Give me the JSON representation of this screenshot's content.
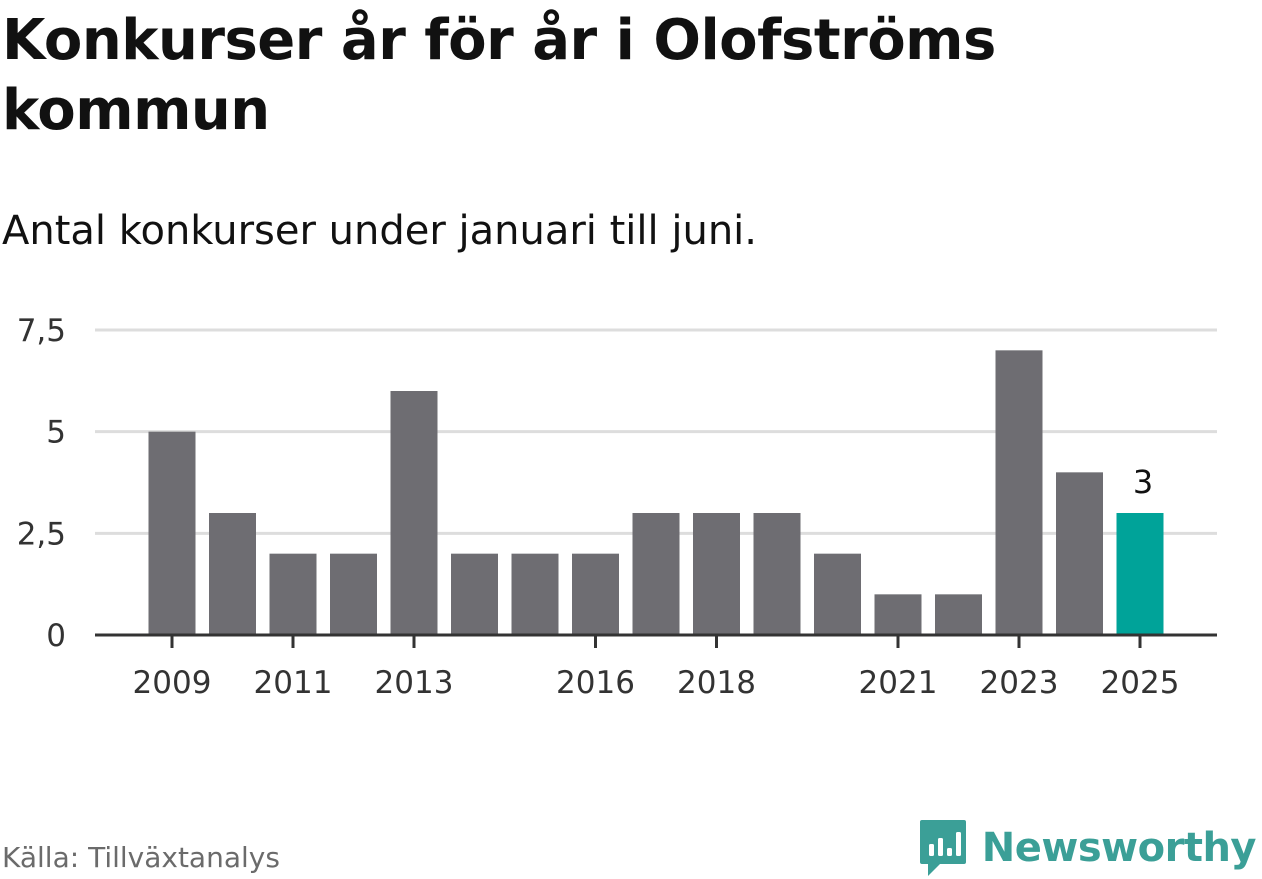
{
  "title": "Konkurser år för år i Olofströms kommun",
  "subtitle": "Antal konkurser under januari till juni.",
  "source": "Källa: Tillväxtanalys",
  "brand": "Newsworthy",
  "colors": {
    "bar": "#6e6d72",
    "highlight": "#00a399",
    "grid": "#dddddd",
    "axis": "#333333",
    "brand": "#3b9f97"
  },
  "chart_data": {
    "type": "bar",
    "categories": [
      "2009",
      "2010",
      "2011",
      "2012",
      "2013",
      "2014",
      "2015",
      "2016",
      "2017",
      "2018",
      "2019",
      "2020",
      "2021",
      "2022",
      "2023",
      "2024",
      "2025"
    ],
    "values": [
      5,
      3,
      2,
      2,
      6,
      2,
      2,
      2,
      3,
      3,
      3,
      2,
      1,
      1,
      7,
      4,
      3
    ],
    "x_tick_labels": [
      "2009",
      "2011",
      "2013",
      "2016",
      "2018",
      "2021",
      "2023",
      "2025"
    ],
    "y_ticks": [
      0,
      2.5,
      5,
      7.5
    ],
    "y_tick_labels": [
      "0",
      "2,5",
      "5",
      "7,5"
    ],
    "ylim": [
      0,
      7.5
    ],
    "highlight_category": "2025",
    "data_labels": [
      {
        "category": "2025",
        "text": "3"
      }
    ],
    "grid": true,
    "xlabel": "",
    "ylabel": ""
  }
}
